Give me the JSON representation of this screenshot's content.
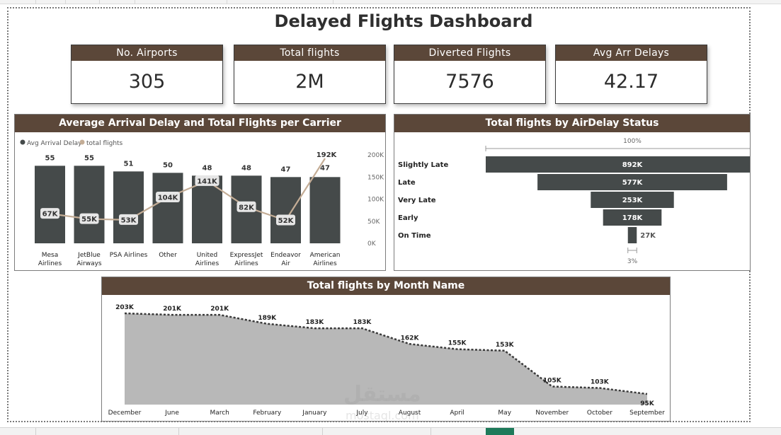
{
  "title": "Delayed Flights Dashboard",
  "kpis": [
    {
      "label": "No. Airports",
      "value": "305"
    },
    {
      "label": "Total flights",
      "value": "2M"
    },
    {
      "label": "Diverted Flights",
      "value": "7576"
    },
    {
      "label": "Avg Arr Delays",
      "value": "42.17"
    }
  ],
  "watermark": {
    "main": "مستقل",
    "sub": "mostaql.com"
  },
  "chart_data": [
    {
      "type": "bar",
      "title": "Average Arrival Delay and Total Flights per Carrier",
      "legend": [
        "Avg Arrival Delay",
        "total flights"
      ],
      "legend_position": "top-left",
      "colors": {
        "bar": "#454a4a",
        "line": "#c4ad96"
      },
      "categories": [
        [
          "Mesa",
          "Airlines"
        ],
        [
          "JetBlue",
          "Airways"
        ],
        [
          "PSA Airlines"
        ],
        [
          "Other"
        ],
        [
          "United",
          "Airlines"
        ],
        [
          "ExpressJet",
          "Airlines"
        ],
        [
          "Endeavor",
          "Air"
        ],
        [
          "American",
          "Airlines"
        ]
      ],
      "series": [
        {
          "name": "Avg Arrival Delay",
          "type": "bar",
          "values": [
            55,
            55,
            51,
            50,
            48,
            48,
            47,
            47
          ]
        },
        {
          "name": "total flights",
          "type": "line",
          "axis": "secondary",
          "values": [
            67000,
            55000,
            53000,
            104000,
            141000,
            82000,
            52000,
            192000
          ],
          "labels": [
            "67K",
            "55K",
            "53K",
            "104K",
            "141K",
            "82K",
            "52K",
            "192K"
          ]
        }
      ],
      "y2_ticks": [
        "0K",
        "50K",
        "100K",
        "150K",
        "200K"
      ],
      "y2lim": [
        0,
        200000
      ],
      "ylim": [
        0,
        68
      ]
    },
    {
      "type": "bar",
      "orientation": "horizontal-funnel",
      "title": "Total flights by AirDelay Status",
      "top_label": "100%",
      "bottom_label": "3%",
      "categories": [
        "Slightly Late",
        "Late",
        "Very Late",
        "Early",
        "On Time"
      ],
      "values": [
        892000,
        577000,
        253000,
        178000,
        27000
      ],
      "labels": [
        "892K",
        "577K",
        "253K",
        "178K",
        "27K"
      ],
      "colors": {
        "bar": "#454a4a"
      }
    },
    {
      "type": "area",
      "title": "Total flights by Month Name",
      "categories": [
        "December",
        "June",
        "March",
        "February",
        "January",
        "July",
        "August",
        "April",
        "May",
        "November",
        "October",
        "September"
      ],
      "values": [
        203000,
        201000,
        201000,
        189000,
        183000,
        183000,
        162000,
        155000,
        153000,
        105000,
        103000,
        95000
      ],
      "labels": [
        "203K",
        "201K",
        "201K",
        "189K",
        "183K",
        "183K",
        "162K",
        "155K",
        "153K",
        "105K",
        "103K",
        "95K"
      ],
      "ylim": [
        0,
        210000
      ],
      "colors": {
        "area": "#b8b8b8",
        "line": "#3a3a3a"
      }
    }
  ]
}
